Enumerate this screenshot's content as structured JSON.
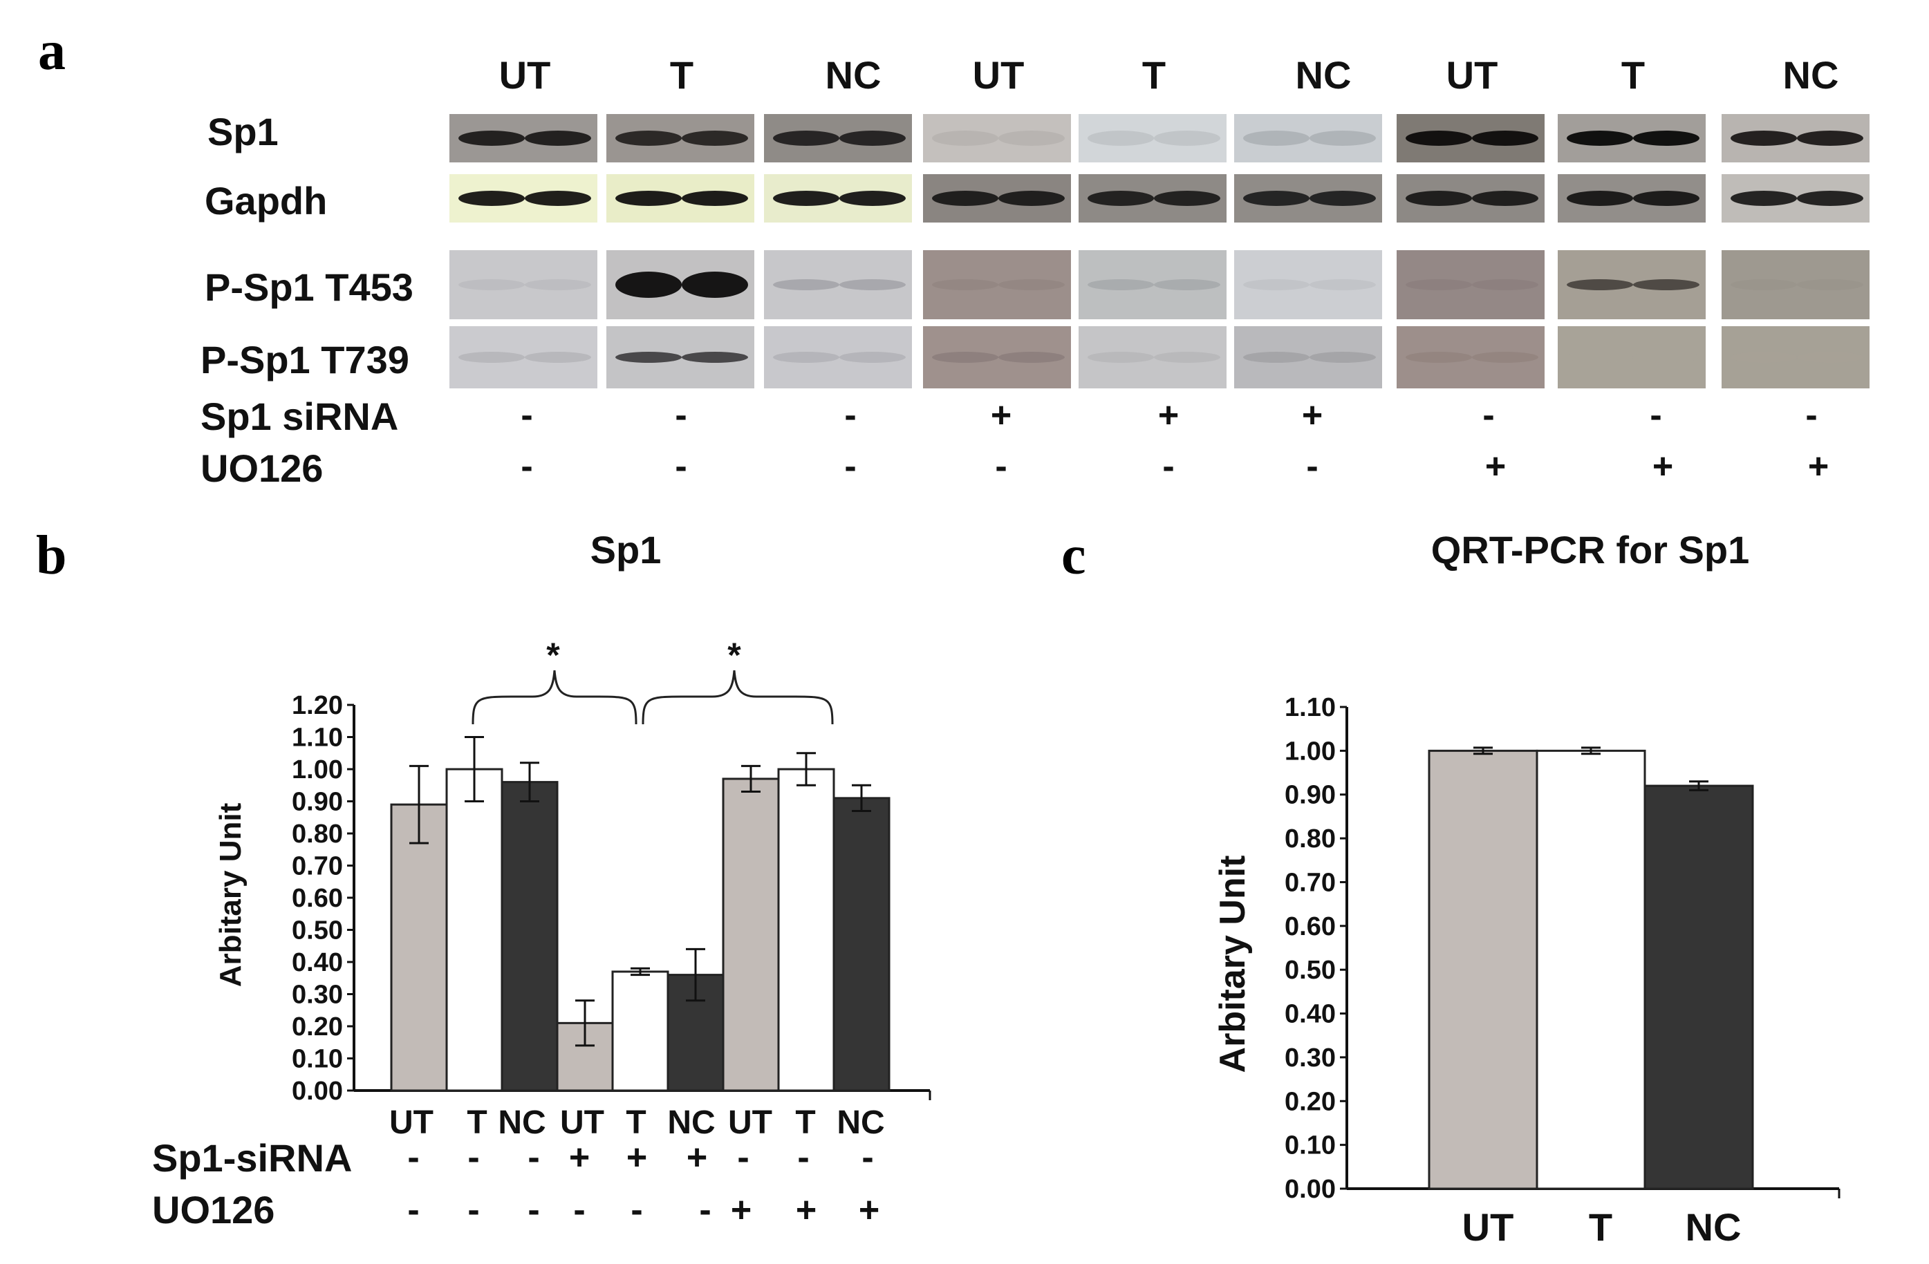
{
  "panel_a": {
    "label": "a",
    "group_labels": [
      "UT",
      "T",
      "NC",
      "UT",
      "T",
      "NC",
      "UT",
      "T",
      "NC"
    ],
    "row_labels": [
      "Sp1",
      "Gapdh",
      "P-Sp1 T453",
      "P-Sp1 T739"
    ],
    "sirna_label": "Sp1 siRNA",
    "uo126_label": "UO126",
    "sirna_signs": [
      "-",
      "-",
      "-",
      "+",
      "+",
      "+",
      "-",
      "-",
      "-"
    ],
    "uo126_signs": [
      "-",
      "-",
      "-",
      "-",
      "-",
      "-",
      "+",
      "+",
      "+"
    ],
    "blots": [
      {
        "row": "Sp1",
        "bg": [
          "#9b9794",
          "#9a9591",
          "#8f8b87",
          "#c4c0bd",
          "#d2d6d9",
          "#c9cdd1",
          "#7f7a74",
          "#a29e9a",
          "#b8b4b0"
        ],
        "band": [
          "#1c1a19",
          "#262322",
          "#222020",
          "#b7b3b0",
          "#c0c4c7",
          "#aeb2b6",
          "#0e0c0b",
          "#0a0908",
          "#1b1918"
        ]
      },
      {
        "row": "Gapdh",
        "bg": [
          "#eef2cf",
          "#e9edc8",
          "#e8eccc",
          "#8a8581",
          "#8e8a86",
          "#908c88",
          "#8d8985",
          "#928e8a",
          "#bfbcb8"
        ],
        "band": [
          "#141311",
          "#121110",
          "#151413",
          "#1a1918",
          "#1d1c1b",
          "#202020",
          "#1a1918",
          "#171615",
          "#1c1b1a"
        ]
      },
      {
        "row": "P-Sp1 T453",
        "bg": [
          "#c8c8cb",
          "#c2c1c2",
          "#c7c7ca",
          "#9c8f8b",
          "#bdbfc0",
          "#ccced2",
          "#948886",
          "#a59f95",
          "#9e9990"
        ],
        "band": [
          "#bdbdc0",
          "#0d0c0c",
          "#a7a7ab",
          "#938783",
          "#a8abad",
          "#c1c3c7",
          "#8c807e",
          "#4a4640",
          "#9a958c"
        ]
      },
      {
        "row": "P-Sp1 T739",
        "bg": [
          "#cbcbcf",
          "#c4c4c6",
          "#c8c8cc",
          "#9f918d",
          "#c5c5c7",
          "#b9b9bc",
          "#9d8f8b",
          "#a8a398",
          "#a6a196"
        ],
        "band": [
          "#b6b6bb",
          "#424143",
          "#b4b4b8",
          "#8d807d",
          "#b8b8bb",
          "#a3a3a7",
          "#93857f",
          "#a8a398",
          "#a6a196"
        ]
      }
    ]
  },
  "panel_b": {
    "label": "b",
    "sirna_label": "Sp1-siRNA",
    "uo126_label": "UO126",
    "sirna_signs": [
      "-",
      "-",
      "-",
      "+",
      "+",
      "+",
      "-",
      "-",
      "-"
    ],
    "uo126_signs": [
      "-",
      "-",
      "-",
      "-",
      "-",
      "-",
      "+",
      "+",
      "+"
    ],
    "significance_marks": [
      "*",
      "*"
    ],
    "chart_data": {
      "type": "bar",
      "title": "Sp1",
      "ylabel": "Arbitary Unit",
      "categories": [
        "UT",
        "T",
        "NC",
        "UT",
        "T",
        "NC",
        "UT",
        "T",
        "NC"
      ],
      "values": [
        0.89,
        1.0,
        0.96,
        0.21,
        0.37,
        0.36,
        0.97,
        1.0,
        0.91
      ],
      "errors": [
        0.12,
        0.1,
        0.06,
        0.07,
        0.01,
        0.08,
        0.04,
        0.05,
        0.04
      ],
      "bar_colors": [
        "#c2bbb7",
        "#ffffff",
        "#353535",
        "#c2bbb7",
        "#ffffff",
        "#353535",
        "#c2bbb7",
        "#ffffff",
        "#353535"
      ],
      "ylim": [
        0,
        1.2
      ],
      "yticks": [
        "0.00",
        "0.10",
        "0.20",
        "0.30",
        "0.40",
        "0.50",
        "0.60",
        "0.70",
        "0.80",
        "0.90",
        "1.00",
        "1.10",
        "1.20"
      ]
    }
  },
  "panel_c": {
    "label": "c",
    "chart_data": {
      "type": "bar",
      "title": "QRT-PCR for Sp1",
      "ylabel": "Arbitary Unit",
      "categories": [
        "UT",
        "T",
        "NC"
      ],
      "values": [
        1.0,
        1.0,
        0.92
      ],
      "errors": [
        0.007,
        0.007,
        0.01
      ],
      "bar_colors": [
        "#c2bbb7",
        "#ffffff",
        "#353535"
      ],
      "ylim": [
        0,
        1.1
      ],
      "yticks": [
        "0.00",
        "0.10",
        "0.20",
        "0.30",
        "0.40",
        "0.50",
        "0.60",
        "0.70",
        "0.80",
        "0.90",
        "1.00",
        "1.10"
      ]
    }
  }
}
